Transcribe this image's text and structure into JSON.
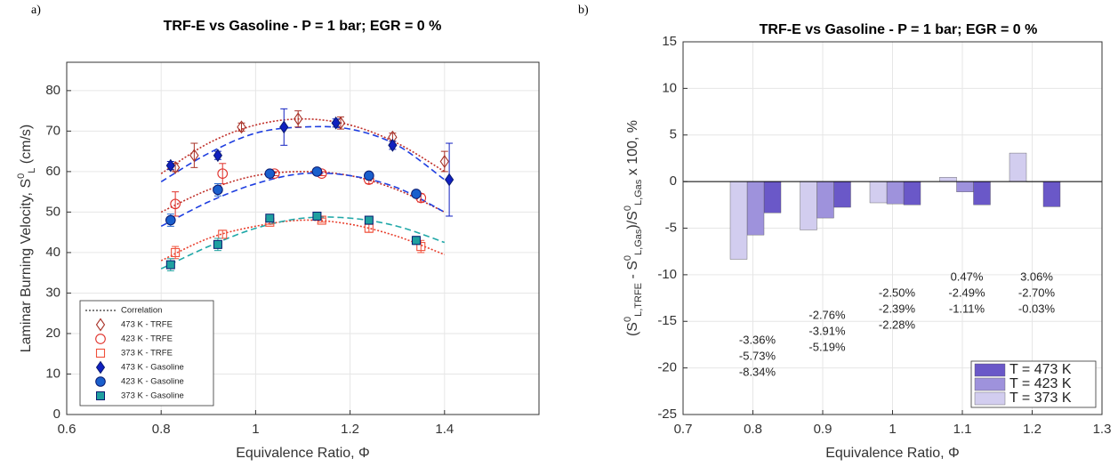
{
  "chart_data": [
    {
      "type": "scatter",
      "panel_label": "a)",
      "title": "TRF-E vs Gasoline - P = 1 bar; EGR = 0 %",
      "x_label": "Equivalence Ratio, Φ",
      "y_label_parts": [
        {
          "text": "Laminar Burning Velocity, S"
        },
        {
          "text": "0",
          "shift": "super"
        },
        {
          "text": "L",
          "shift": "sub"
        },
        {
          "text": " (cm/s)"
        }
      ],
      "xlim": [
        0.6,
        1.6
      ],
      "xticks": [
        0.6,
        0.8,
        1,
        1.2,
        1.4
      ],
      "ylim": [
        0,
        87
      ],
      "yticks": [
        0,
        10,
        20,
        30,
        40,
        50,
        60,
        70,
        80
      ],
      "grid": true,
      "legend": "lower left",
      "correlation_label": "Correlation",
      "correlation_x": [
        0.8,
        0.9,
        1.0,
        1.1,
        1.2,
        1.3,
        1.4
      ],
      "correlations": [
        {
          "color": "#c0302a",
          "dash": "dotted",
          "values": [
            59.5,
            67,
            71.5,
            73,
            71.5,
            67,
            60
          ]
        },
        {
          "color": "#c0302a",
          "dash": "dotted",
          "values": [
            50,
            55.5,
            59,
            60,
            59,
            55.5,
            50
          ]
        },
        {
          "color": "#e8402e",
          "dash": "dotted",
          "values": [
            38,
            43.5,
            46.5,
            48,
            47,
            44,
            39.5
          ]
        },
        {
          "color": "#1f3fe0",
          "dash": "dashed",
          "values": [
            57.5,
            64.5,
            69.5,
            71,
            70.5,
            66.5,
            58
          ]
        },
        {
          "color": "#1f3fe0",
          "dash": "dashed",
          "values": [
            46.5,
            52.5,
            57,
            59.5,
            59,
            56,
            50
          ]
        },
        {
          "color": "#20a8a8",
          "dash": "dashed",
          "values": [
            36,
            41.5,
            46,
            48.5,
            48.5,
            46.5,
            42.5
          ]
        }
      ],
      "series": [
        {
          "name": "473 K - TRFE",
          "color": "#a83228",
          "marker": "diamond",
          "filled": false,
          "x": [
            0.83,
            0.87,
            0.97,
            1.09,
            1.18,
            1.29,
            1.4
          ],
          "values": [
            61,
            64,
            71,
            73,
            72,
            68.5,
            62.5
          ],
          "errors": [
            1,
            3,
            1,
            2,
            1.5,
            1,
            2.5
          ]
        },
        {
          "name": "423 K - TRFE",
          "color": "#e0302a",
          "marker": "circle",
          "filled": false,
          "x": [
            0.83,
            0.93,
            1.04,
            1.14,
            1.24,
            1.35
          ],
          "values": [
            52,
            59.5,
            59.5,
            59.5,
            58,
            53.5
          ],
          "errors": [
            3,
            2.5,
            0.5,
            0.5,
            1,
            1
          ]
        },
        {
          "name": "373 K - TRFE",
          "color": "#f0503a",
          "marker": "square",
          "filled": false,
          "x": [
            0.83,
            0.93,
            1.03,
            1.14,
            1.24,
            1.35
          ],
          "values": [
            40,
            44.5,
            47.5,
            48,
            46,
            41.5
          ],
          "errors": [
            1.5,
            1,
            0.5,
            0.5,
            1,
            1.5
          ]
        },
        {
          "name": "473 K - Gasoline",
          "color": "#1020c0",
          "marker": "diamond",
          "filled": true,
          "x": [
            0.82,
            0.92,
            1.06,
            1.17,
            1.29,
            1.41
          ],
          "values": [
            61.5,
            64,
            71,
            72,
            66.5,
            58
          ],
          "errors": [
            1,
            1,
            4.5,
            1,
            1,
            9
          ]
        },
        {
          "name": "423 K - Gasoline",
          "color": "#1a5fcc",
          "marker": "circle",
          "filled": true,
          "x": [
            0.82,
            0.92,
            1.03,
            1.13,
            1.24,
            1.34
          ],
          "values": [
            48,
            55.5,
            59.5,
            60,
            59,
            54.5
          ],
          "errors": [
            1.5,
            1.5,
            0.5,
            0.5,
            0.5,
            0.5
          ]
        },
        {
          "name": "373 K - Gasoline",
          "color": "#1fa0a0",
          "marker": "square",
          "filled": true,
          "x": [
            0.82,
            0.92,
            1.03,
            1.13,
            1.24,
            1.34
          ],
          "values": [
            37,
            42,
            48.5,
            49,
            48,
            43
          ],
          "errors": [
            1.5,
            1.5,
            0.5,
            0.5,
            0.5,
            1
          ]
        }
      ]
    },
    {
      "type": "bar",
      "panel_label": "b)",
      "title": "TRF-E vs Gasoline - P = 1 bar; EGR = 0 %",
      "x_label": "Equivalence Ratio, Φ",
      "y_label_parts": [
        {
          "text": "(S"
        },
        {
          "text": "0",
          "shift": "super"
        },
        {
          "text": "L,TRFE",
          "shift": "sub"
        },
        {
          "text": " - S"
        },
        {
          "text": "0",
          "shift": "super"
        },
        {
          "text": "L,Gas",
          "shift": "sub"
        },
        {
          "text": ")/S"
        },
        {
          "text": "0",
          "shift": "super"
        },
        {
          "text": "L,Gas",
          "shift": "sub"
        },
        {
          "text": "    x 100, %"
        }
      ],
      "x": [
        0.8,
        0.9,
        1,
        1.1,
        1.2
      ],
      "xlim": [
        0.7,
        1.3
      ],
      "xticks": [
        0.7,
        0.8,
        0.9,
        1,
        1.1,
        1.2,
        1.3
      ],
      "ylim": [
        -25,
        15
      ],
      "yticks": [
        -25,
        -20,
        -15,
        -10,
        -5,
        0,
        5,
        10,
        15
      ],
      "grid": true,
      "legend": "lower right",
      "series": [
        {
          "name": "T = 473 K",
          "color": "#6a58c8",
          "values": [
            -3.36,
            -2.76,
            -2.5,
            -2.49,
            -2.7
          ],
          "value_labels": [
            "-3.36%",
            "-2.76%",
            "-2.50%",
            "-2.49%",
            "-2.70%"
          ]
        },
        {
          "name": "T = 423 K",
          "color": "#9e92dc",
          "values": [
            -5.73,
            -3.91,
            -2.39,
            -1.11,
            -0.03
          ],
          "value_labels": [
            "-5.73%",
            "-3.91%",
            "-2.39%",
            "-1.11%",
            "-0.03%"
          ]
        },
        {
          "name": "T = 373 K",
          "color": "#d2cdef",
          "values": [
            -8.34,
            -5.19,
            -2.28,
            0.47,
            3.06
          ],
          "value_labels": [
            "-8.34%",
            "-5.19%",
            "-2.28%",
            "0.47%",
            "3.06%"
          ]
        }
      ]
    }
  ]
}
